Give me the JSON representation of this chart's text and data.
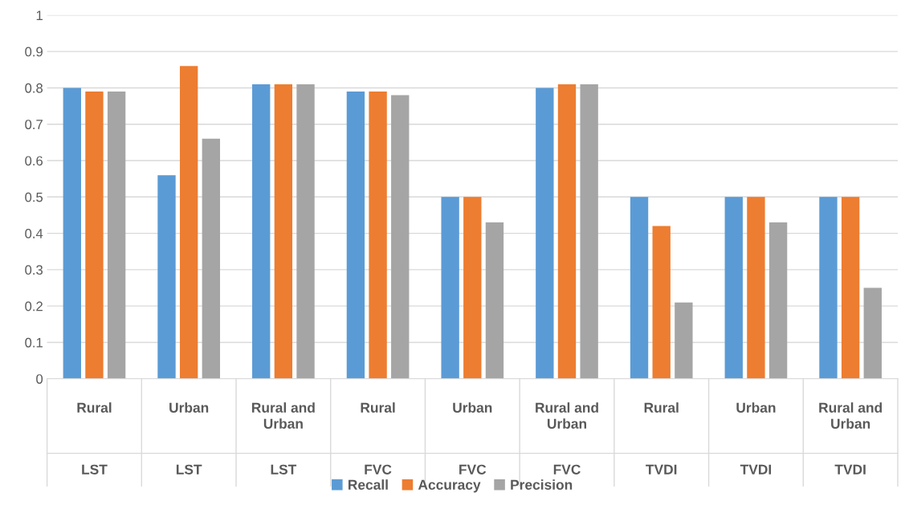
{
  "chart_data": {
    "type": "bar",
    "categories": [
      "Rural\nLST",
      "Urban\nLST",
      "Rural and\nUrban\nLST",
      "Rural\nFVC",
      "Urban\nFVC",
      "Rural and\nUrban\nFVC",
      "Rural\nTVDI",
      "Urban\nTVDI",
      "Rural and\nUrban\nTVDI"
    ],
    "series": [
      {
        "name": "Recall",
        "color": "#5b9bd5",
        "values": [
          0.8,
          0.56,
          0.81,
          0.79,
          0.5,
          0.8,
          0.5,
          0.5,
          0.5
        ]
      },
      {
        "name": "Accuracy",
        "color": "#ed7d31",
        "values": [
          0.79,
          0.86,
          0.81,
          0.79,
          0.5,
          0.81,
          0.42,
          0.5,
          0.5
        ]
      },
      {
        "name": "Precision",
        "color": "#a5a5a5",
        "values": [
          0.79,
          0.66,
          0.81,
          0.78,
          0.43,
          0.81,
          0.21,
          0.43,
          0.25
        ]
      }
    ],
    "ylim": [
      0,
      1
    ],
    "yticks": [
      0,
      0.1,
      0.2,
      0.3,
      0.4,
      0.5,
      0.6,
      0.7,
      0.8,
      0.9,
      1
    ],
    "grid": "y",
    "legend": "bottom"
  }
}
